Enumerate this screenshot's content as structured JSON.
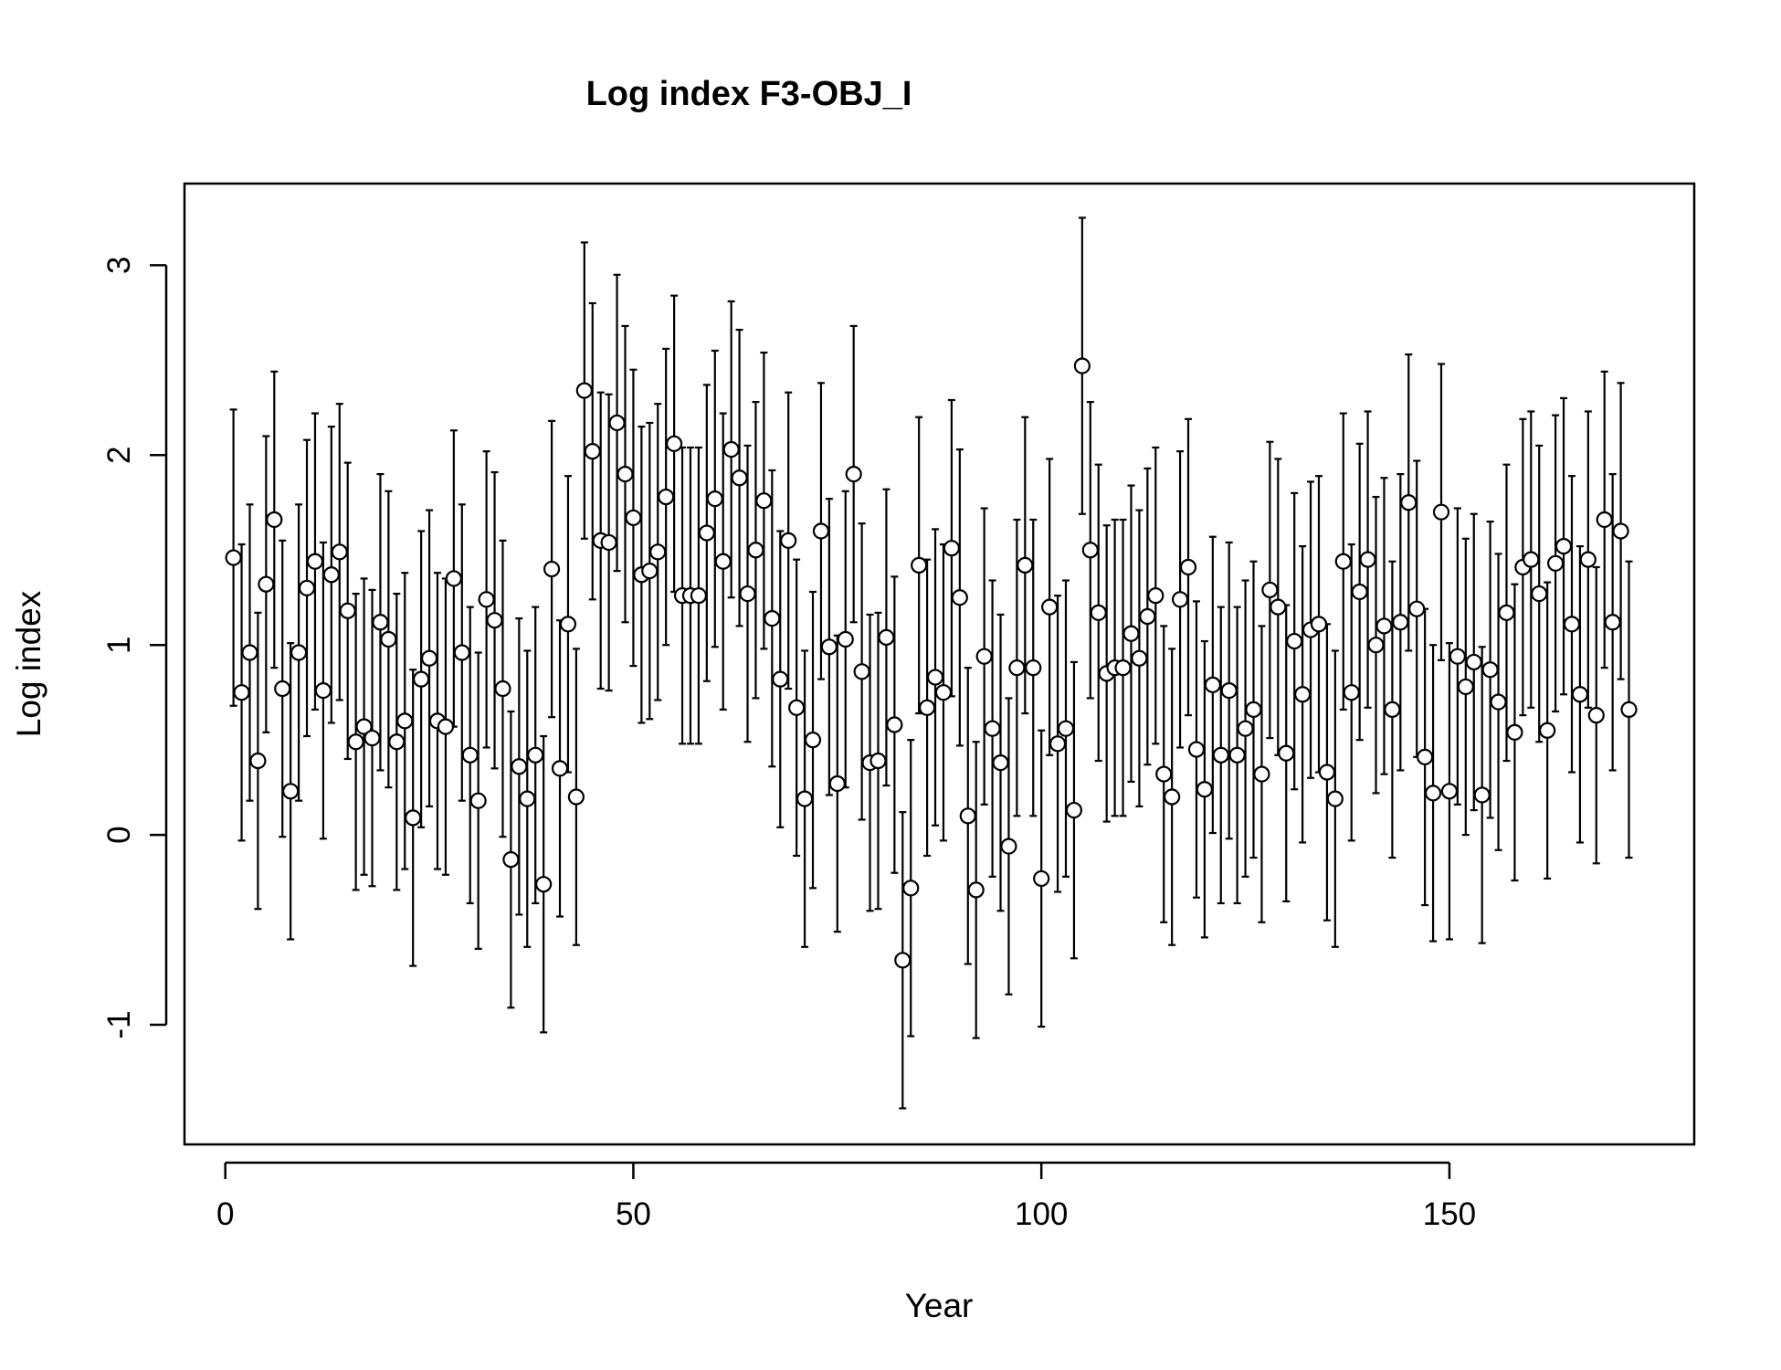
{
  "chart_data": {
    "type": "scatter",
    "title": "Log index F3-OBJ_I",
    "xlabel": "Year",
    "ylabel": "Log index",
    "xlim": [
      -5,
      180
    ],
    "ylim": [
      -1.63,
      3.43
    ],
    "xticks": [
      0,
      50,
      100,
      150
    ],
    "xtick_labels": [
      "0",
      "50",
      "100",
      "150"
    ],
    "yticks": [
      -1,
      0,
      1,
      2,
      3
    ],
    "ytick_labels": [
      "-1",
      "0",
      "1",
      "2",
      "3"
    ],
    "grid": false,
    "series": [
      {
        "marker": "open-circle",
        "error_bars": "vertical",
        "error_halfwidth": 0.78,
        "points": [
          [
            1,
            1.46
          ],
          [
            2,
            0.75
          ],
          [
            3,
            0.96
          ],
          [
            4,
            0.39
          ],
          [
            5,
            1.32
          ],
          [
            6,
            1.66
          ],
          [
            7,
            0.77
          ],
          [
            8,
            0.23
          ],
          [
            9,
            0.96
          ],
          [
            10,
            1.3
          ],
          [
            11,
            1.44
          ],
          [
            12,
            0.76
          ],
          [
            13,
            1.37
          ],
          [
            14,
            1.49
          ],
          [
            15,
            1.18
          ],
          [
            16,
            0.49
          ],
          [
            17,
            0.57
          ],
          [
            18,
            0.51
          ],
          [
            19,
            1.12
          ],
          [
            20,
            1.03
          ],
          [
            21,
            0.49
          ],
          [
            22,
            0.6
          ],
          [
            23,
            0.09
          ],
          [
            24,
            0.82
          ],
          [
            25,
            0.93
          ],
          [
            26,
            0.6
          ],
          [
            27,
            0.57
          ],
          [
            28,
            1.35
          ],
          [
            29,
            0.96
          ],
          [
            30,
            0.42
          ],
          [
            31,
            0.18
          ],
          [
            32,
            1.24
          ],
          [
            33,
            1.13
          ],
          [
            34,
            0.77
          ],
          [
            35,
            -0.13
          ],
          [
            36,
            0.36
          ],
          [
            37,
            0.19
          ],
          [
            38,
            0.42
          ],
          [
            39,
            -0.26
          ],
          [
            40,
            1.4
          ],
          [
            41,
            0.35
          ],
          [
            42,
            1.11
          ],
          [
            43,
            0.2
          ],
          [
            44,
            2.34
          ],
          [
            45,
            2.02
          ],
          [
            46,
            1.55
          ],
          [
            47,
            1.54
          ],
          [
            48,
            2.17
          ],
          [
            49,
            1.9
          ],
          [
            50,
            1.67
          ],
          [
            51,
            1.37
          ],
          [
            52,
            1.39
          ],
          [
            53,
            1.49
          ],
          [
            54,
            1.78
          ],
          [
            55,
            2.06
          ],
          [
            56,
            1.26
          ],
          [
            57,
            1.26
          ],
          [
            58,
            1.26
          ],
          [
            59,
            1.59
          ],
          [
            60,
            1.77
          ],
          [
            61,
            1.44
          ],
          [
            62,
            2.03
          ],
          [
            63,
            1.88
          ],
          [
            64,
            1.27
          ],
          [
            65,
            1.5
          ],
          [
            66,
            1.76
          ],
          [
            67,
            1.14
          ],
          [
            68,
            0.82
          ],
          [
            69,
            1.55
          ],
          [
            70,
            0.67
          ],
          [
            71,
            0.19
          ],
          [
            72,
            0.5
          ],
          [
            73,
            1.6
          ],
          [
            74,
            0.99
          ],
          [
            75,
            0.27
          ],
          [
            76,
            1.03
          ],
          [
            77,
            1.9
          ],
          [
            78,
            0.86
          ],
          [
            79,
            0.38
          ],
          [
            80,
            0.39
          ],
          [
            81,
            1.04
          ],
          [
            82,
            0.58
          ],
          [
            83,
            -0.66
          ],
          [
            84,
            -0.28
          ],
          [
            85,
            1.42
          ],
          [
            86,
            0.67
          ],
          [
            87,
            0.83
          ],
          [
            88,
            0.75
          ],
          [
            89,
            1.51
          ],
          [
            90,
            1.25
          ],
          [
            91,
            0.1
          ],
          [
            92,
            -0.29
          ],
          [
            93,
            0.94
          ],
          [
            94,
            0.56
          ],
          [
            95,
            0.38
          ],
          [
            96,
            -0.06
          ],
          [
            97,
            0.88
          ],
          [
            98,
            1.42
          ],
          [
            99,
            0.88
          ],
          [
            100,
            -0.23
          ],
          [
            101,
            1.2
          ],
          [
            102,
            0.48
          ],
          [
            103,
            0.56
          ],
          [
            104,
            0.13
          ],
          [
            105,
            2.47
          ],
          [
            106,
            1.5
          ],
          [
            107,
            1.17
          ],
          [
            108,
            0.85
          ],
          [
            109,
            0.88
          ],
          [
            110,
            0.88
          ],
          [
            111,
            1.06
          ],
          [
            112,
            0.93
          ],
          [
            113,
            1.15
          ],
          [
            114,
            1.26
          ],
          [
            115,
            0.32
          ],
          [
            116,
            0.2
          ],
          [
            117,
            1.24
          ],
          [
            118,
            1.41
          ],
          [
            119,
            0.45
          ],
          [
            120,
            0.24
          ],
          [
            121,
            0.79
          ],
          [
            122,
            0.42
          ],
          [
            123,
            0.76
          ],
          [
            124,
            0.42
          ],
          [
            125,
            0.56
          ],
          [
            126,
            0.66
          ],
          [
            127,
            0.32
          ],
          [
            128,
            1.29
          ],
          [
            129,
            1.2
          ],
          [
            130,
            0.43
          ],
          [
            131,
            1.02
          ],
          [
            132,
            0.74
          ],
          [
            133,
            1.08
          ],
          [
            134,
            1.11
          ],
          [
            135,
            0.33
          ],
          [
            136,
            0.19
          ],
          [
            137,
            1.44
          ],
          [
            138,
            0.75
          ],
          [
            139,
            1.28
          ],
          [
            140,
            1.45
          ],
          [
            141,
            1.0
          ],
          [
            142,
            1.1
          ],
          [
            143,
            0.66
          ],
          [
            144,
            1.12
          ],
          [
            145,
            1.75
          ],
          [
            146,
            1.19
          ],
          [
            147,
            0.41
          ],
          [
            148,
            0.22
          ],
          [
            149,
            1.7
          ],
          [
            150,
            0.23
          ],
          [
            151,
            0.94
          ],
          [
            152,
            0.78
          ],
          [
            153,
            0.91
          ],
          [
            154,
            0.21
          ],
          [
            155,
            0.87
          ],
          [
            156,
            0.7
          ],
          [
            157,
            1.17
          ],
          [
            158,
            0.54
          ],
          [
            159,
            1.41
          ],
          [
            160,
            1.45
          ],
          [
            161,
            1.27
          ],
          [
            162,
            0.55
          ],
          [
            163,
            1.43
          ],
          [
            164,
            1.52
          ],
          [
            165,
            1.11
          ],
          [
            166,
            0.74
          ],
          [
            167,
            1.45
          ],
          [
            168,
            0.63
          ],
          [
            169,
            1.66
          ],
          [
            170,
            1.12
          ],
          [
            171,
            1.6
          ],
          [
            172,
            0.66
          ]
        ]
      }
    ]
  }
}
